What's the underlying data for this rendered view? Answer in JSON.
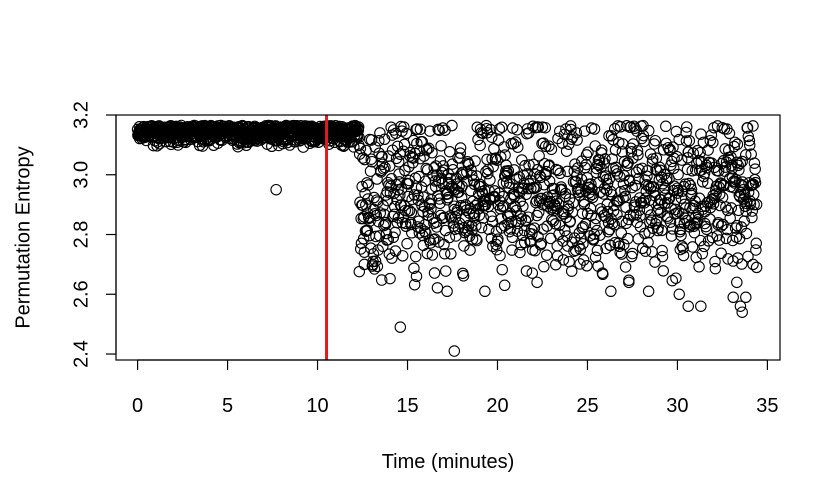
{
  "chart_data": {
    "type": "scatter",
    "title": "",
    "xlabel": "Time (minutes)",
    "ylabel": "Permutation Entropy",
    "xlim": [
      -1.2,
      35.7
    ],
    "ylim": [
      2.38,
      3.2
    ],
    "xticks": [
      0,
      5,
      10,
      15,
      20,
      25,
      30,
      35
    ],
    "xtick_labels": [
      "0",
      "5",
      "10",
      "15",
      "20",
      "25",
      "30",
      "35"
    ],
    "yticks": [
      2.4,
      2.6,
      2.8,
      3.0,
      3.2
    ],
    "ytick_labels": [
      "2.4",
      "2.6",
      "2.8",
      "3.0",
      "3.2"
    ],
    "grid": false,
    "legend": "none",
    "marker": "open-circle",
    "point_color": "#000000",
    "vline": {
      "x": 10.5,
      "color": "#e31a1c"
    },
    "segments": [
      {
        "name": "",
        "x_start": 0.0,
        "x_end": 12.3,
        "n_points": 740,
        "y_center": 3.145,
        "y_spread": 0.022
      },
      {
        "name": "",
        "x_start": 12.3,
        "x_end": 34.4,
        "n_points": 1100,
        "y_center": 2.93,
        "y_spread": 0.13
      }
    ],
    "outliers": [
      {
        "x": 7.7,
        "y": 2.95
      },
      {
        "x": 14.6,
        "y": 2.49
      },
      {
        "x": 17.6,
        "y": 2.41
      },
      {
        "x": 15.5,
        "y": 2.66
      },
      {
        "x": 17.2,
        "y": 2.61
      },
      {
        "x": 19.3,
        "y": 2.61
      },
      {
        "x": 20.4,
        "y": 2.63
      },
      {
        "x": 22.2,
        "y": 2.64
      },
      {
        "x": 26.3,
        "y": 2.61
      },
      {
        "x": 27.3,
        "y": 2.64
      },
      {
        "x": 28.4,
        "y": 2.61
      },
      {
        "x": 30.1,
        "y": 2.6
      },
      {
        "x": 30.6,
        "y": 2.56
      },
      {
        "x": 31.3,
        "y": 2.56
      },
      {
        "x": 33.1,
        "y": 2.59
      },
      {
        "x": 33.5,
        "y": 2.56
      },
      {
        "x": 33.6,
        "y": 2.54
      },
      {
        "x": 33.8,
        "y": 2.59
      },
      {
        "x": 33.3,
        "y": 2.64
      },
      {
        "x": 34.2,
        "y": 2.7
      },
      {
        "x": 34.4,
        "y": 2.69
      },
      {
        "x": 12.6,
        "y": 2.7
      }
    ]
  }
}
